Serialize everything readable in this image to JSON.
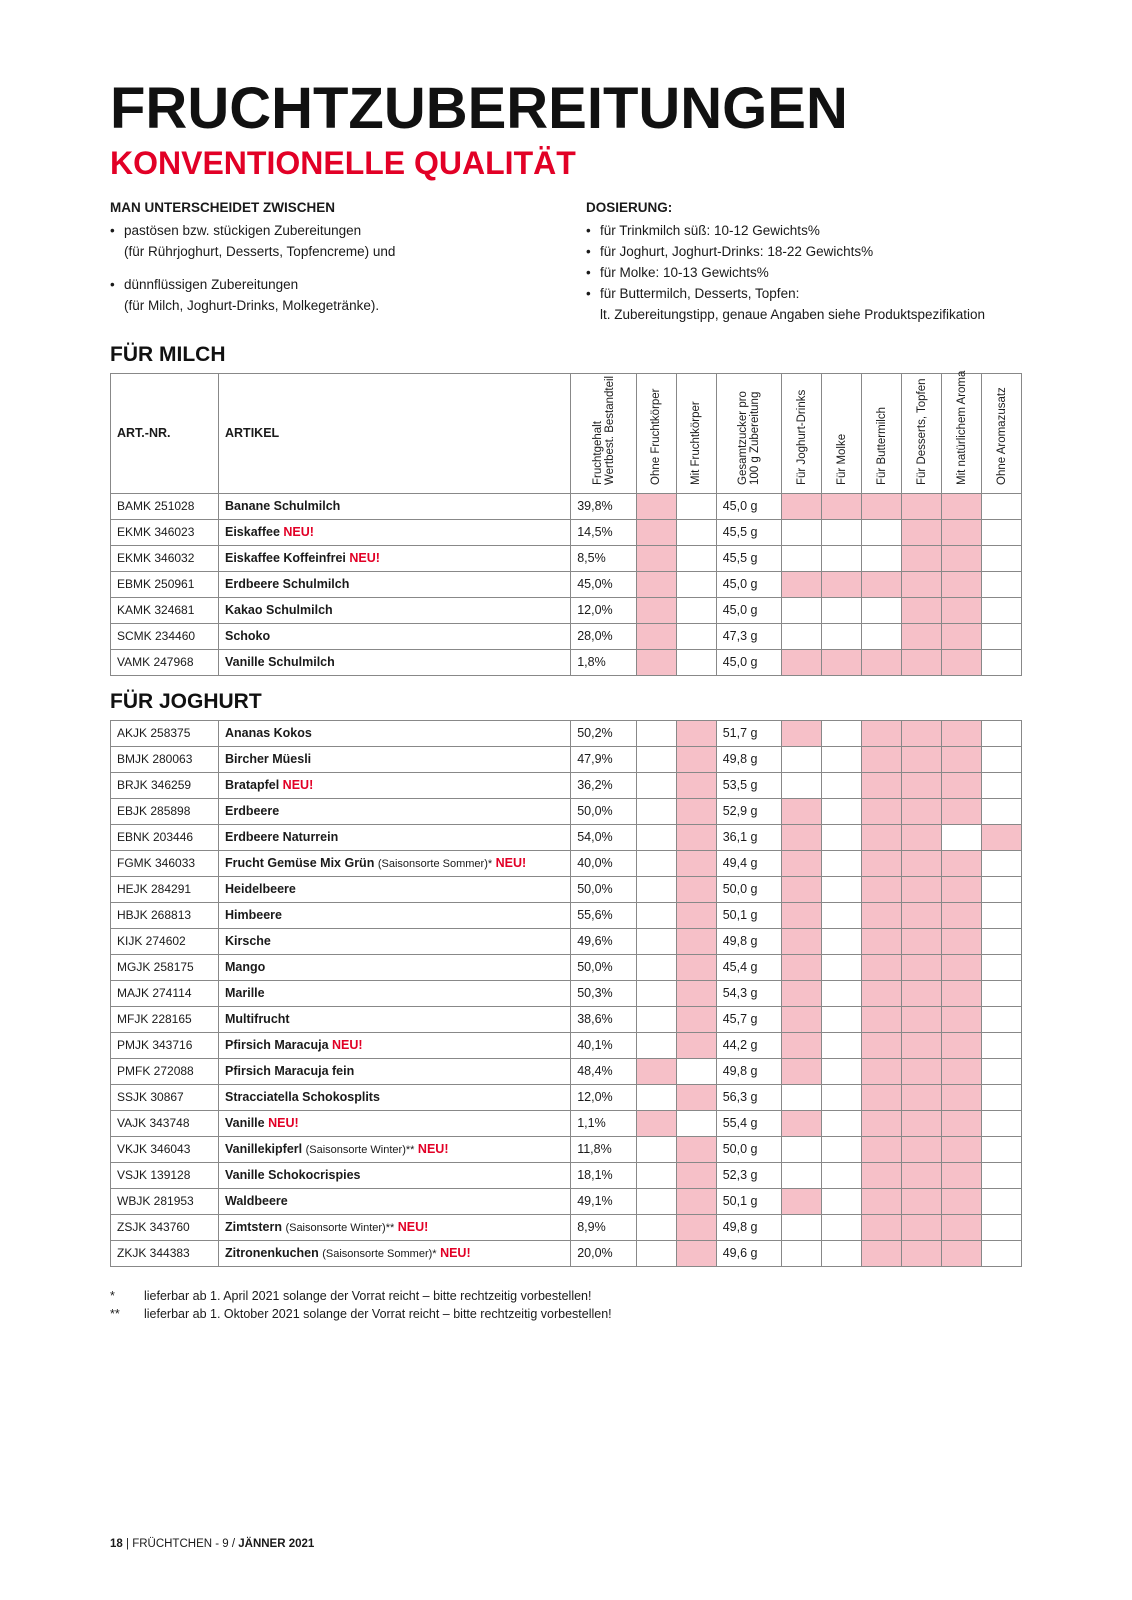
{
  "title": "FRUCHTZUBEREITUNGEN",
  "subtitle": "KONVENTIONELLE QUALITÄT",
  "intro": {
    "left_heading": "MAN UNTERSCHEIDET ZWISCHEN",
    "left_items": [
      "pastösen bzw. stückigen Zubereitungen",
      "(für Rührjoghurt, Desserts, Topfencreme) und",
      "",
      "dünnflüssigen Zubereitungen",
      "(für Milch, Joghurt-Drinks, Molkegetränke)."
    ],
    "right_heading": "DOSIERUNG:",
    "right_items": [
      "für Trinkmilch süß: 10-12 Gewichts%",
      "für Joghurt, Joghurt-Drinks: 18-22 Gewichts%",
      "für Molke: 10-13 Gewichts%",
      "für Buttermilch, Desserts, Topfen:"
    ],
    "right_note": "lt. Zubereitungstipp, genaue Angaben siehe Produkt­spezifikation"
  },
  "columns": {
    "art": "ART.-NR.",
    "artikel": "ARTIKEL",
    "c1": "Fruchtgehalt\nWertbest. Bestandteil",
    "c2": "Ohne Fruchtkörper",
    "c3": "Mit Fruchtkörper",
    "c4": "Gesamtzucker pro\n100 g Zubereitung",
    "c5": "Für Joghurt-Drinks",
    "c6": "Für Molke",
    "c7": "Für Buttermilch",
    "c8": "Für Desserts, Topfen",
    "c9": "Mit natürlichem Aroma",
    "c10": "Ohne Aromazusatz"
  },
  "section1": {
    "heading": "FÜR MILCH",
    "rows": [
      {
        "art": "BAMK 251028",
        "name": "Banane Schulmilch",
        "neu": false,
        "sub": "",
        "pct": "39,8%",
        "sugar": "45,0 g",
        "marks": [
          false,
          true,
          false,
          false,
          true,
          true,
          true,
          true,
          true,
          false
        ]
      },
      {
        "art": "EKMK 346023",
        "name": "Eiskaffee",
        "neu": true,
        "sub": "",
        "pct": "14,5%",
        "sugar": "45,5 g",
        "marks": [
          false,
          true,
          false,
          false,
          false,
          false,
          false,
          true,
          true,
          false
        ]
      },
      {
        "art": "EKMK 346032",
        "name": "Eiskaffee Koffeinfrei",
        "neu": true,
        "sub": "",
        "pct": "8,5%",
        "sugar": "45,5 g",
        "marks": [
          false,
          true,
          false,
          false,
          false,
          false,
          false,
          true,
          true,
          false
        ]
      },
      {
        "art": "EBMK 250961",
        "name": "Erdbeere Schulmilch",
        "neu": false,
        "sub": "",
        "pct": "45,0%",
        "sugar": "45,0 g",
        "marks": [
          false,
          true,
          false,
          false,
          true,
          true,
          true,
          true,
          true,
          false
        ]
      },
      {
        "art": "KAMK 324681",
        "name": "Kakao Schulmilch",
        "neu": false,
        "sub": "",
        "pct": "12,0%",
        "sugar": "45,0 g",
        "marks": [
          false,
          true,
          false,
          false,
          false,
          false,
          false,
          true,
          true,
          false
        ]
      },
      {
        "art": "SCMK 234460",
        "name": "Schoko",
        "neu": false,
        "sub": "",
        "pct": "28,0%",
        "sugar": "47,3 g",
        "marks": [
          false,
          true,
          false,
          false,
          false,
          false,
          false,
          true,
          true,
          false
        ]
      },
      {
        "art": "VAMK 247968",
        "name": "Vanille Schulmilch",
        "neu": false,
        "sub": "",
        "pct": "1,8%",
        "sugar": "45,0 g",
        "marks": [
          false,
          true,
          false,
          false,
          true,
          true,
          true,
          true,
          true,
          false
        ]
      }
    ]
  },
  "section2": {
    "heading": "FÜR JOGHURT",
    "rows": [
      {
        "art": "AKJK 258375",
        "name": "Ananas Kokos",
        "neu": false,
        "sub": "",
        "pct": "50,2%",
        "sugar": "51,7 g",
        "marks": [
          false,
          false,
          true,
          false,
          true,
          false,
          true,
          true,
          true,
          false
        ]
      },
      {
        "art": "BMJK 280063",
        "name": "Bircher Müesli",
        "neu": false,
        "sub": "",
        "pct": "47,9%",
        "sugar": "49,8 g",
        "marks": [
          false,
          false,
          true,
          false,
          false,
          false,
          true,
          true,
          true,
          false
        ]
      },
      {
        "art": "BRJK 346259",
        "name": "Bratapfel",
        "neu": true,
        "sub": "",
        "pct": "36,2%",
        "sugar": "53,5 g",
        "marks": [
          false,
          false,
          true,
          false,
          false,
          false,
          true,
          true,
          true,
          false
        ]
      },
      {
        "art": "EBJK 285898",
        "name": "Erdbeere",
        "neu": false,
        "sub": "",
        "pct": "50,0%",
        "sugar": "52,9 g",
        "marks": [
          false,
          false,
          true,
          false,
          true,
          false,
          true,
          true,
          true,
          false
        ]
      },
      {
        "art": "EBNK 203446",
        "name": "Erdbeere Naturrein",
        "neu": false,
        "sub": "",
        "pct": "54,0%",
        "sugar": "36,1 g",
        "marks": [
          false,
          false,
          true,
          false,
          true,
          false,
          true,
          true,
          false,
          true
        ]
      },
      {
        "art": "FGMK 346033",
        "name": "Frucht Gemüse Mix Grün",
        "neu": true,
        "sub": "(Saisonsorte Sommer)*",
        "pct": "40,0%",
        "sugar": "49,4 g",
        "marks": [
          false,
          false,
          true,
          false,
          true,
          false,
          true,
          true,
          true,
          false
        ]
      },
      {
        "art": "HEJK 284291",
        "name": "Heidelbeere",
        "neu": false,
        "sub": "",
        "pct": "50,0%",
        "sugar": "50,0 g",
        "marks": [
          false,
          false,
          true,
          false,
          true,
          false,
          true,
          true,
          true,
          false
        ]
      },
      {
        "art": "HBJK 268813",
        "name": "Himbeere",
        "neu": false,
        "sub": "",
        "pct": "55,6%",
        "sugar": "50,1 g",
        "marks": [
          false,
          false,
          true,
          false,
          true,
          false,
          true,
          true,
          true,
          false
        ]
      },
      {
        "art": "KIJK 274602",
        "name": "Kirsche",
        "neu": false,
        "sub": "",
        "pct": "49,6%",
        "sugar": "49,8 g",
        "marks": [
          false,
          false,
          true,
          false,
          true,
          false,
          true,
          true,
          true,
          false
        ]
      },
      {
        "art": "MGJK 258175",
        "name": "Mango",
        "neu": false,
        "sub": "",
        "pct": "50,0%",
        "sugar": "45,4 g",
        "marks": [
          false,
          false,
          true,
          false,
          true,
          false,
          true,
          true,
          true,
          false
        ]
      },
      {
        "art": "MAJK 274114",
        "name": "Marille",
        "neu": false,
        "sub": "",
        "pct": "50,3%",
        "sugar": "54,3 g",
        "marks": [
          false,
          false,
          true,
          false,
          true,
          false,
          true,
          true,
          true,
          false
        ]
      },
      {
        "art": "MFJK 228165",
        "name": "Multifrucht",
        "neu": false,
        "sub": "",
        "pct": "38,6%",
        "sugar": "45,7 g",
        "marks": [
          false,
          false,
          true,
          false,
          true,
          false,
          true,
          true,
          true,
          false
        ]
      },
      {
        "art": "PMJK 343716",
        "name": "Pfirsich Maracuja",
        "neu": true,
        "sub": "",
        "pct": "40,1%",
        "sugar": "44,2 g",
        "marks": [
          false,
          false,
          true,
          false,
          true,
          false,
          true,
          true,
          true,
          false
        ]
      },
      {
        "art": "PMFK 272088",
        "name": "Pfirsich Maracuja fein",
        "neu": false,
        "sub": "",
        "pct": "48,4%",
        "sugar": "49,8 g",
        "marks": [
          false,
          true,
          false,
          false,
          true,
          false,
          true,
          true,
          true,
          false
        ]
      },
      {
        "art": "SSJK 30867",
        "name": "Stracciatella Schokosplits",
        "neu": false,
        "sub": "",
        "pct": "12,0%",
        "sugar": "56,3 g",
        "marks": [
          false,
          false,
          true,
          false,
          false,
          false,
          true,
          true,
          true,
          false
        ]
      },
      {
        "art": "VAJK 343748",
        "name": "Vanille",
        "neu": true,
        "sub": "",
        "pct": "1,1%",
        "sugar": "55,4 g",
        "marks": [
          false,
          true,
          false,
          false,
          true,
          false,
          true,
          true,
          true,
          false
        ]
      },
      {
        "art": "VKJK 346043",
        "name": "Vanillekipferl",
        "neu": true,
        "sub": "(Saisonsorte Winter)**",
        "pct": "11,8%",
        "sugar": "50,0 g",
        "marks": [
          false,
          false,
          true,
          false,
          false,
          false,
          true,
          true,
          true,
          false
        ]
      },
      {
        "art": "VSJK 139128",
        "name": "Vanille Schokocrispies",
        "neu": false,
        "sub": "",
        "pct": "18,1%",
        "sugar": "52,3 g",
        "marks": [
          false,
          false,
          true,
          false,
          false,
          false,
          true,
          true,
          true,
          false
        ]
      },
      {
        "art": "WBJK 281953",
        "name": "Waldbeere",
        "neu": false,
        "sub": "",
        "pct": "49,1%",
        "sugar": "50,1 g",
        "marks": [
          false,
          false,
          true,
          false,
          true,
          false,
          true,
          true,
          true,
          false
        ]
      },
      {
        "art": "ZSJK 343760",
        "name": "Zimtstern",
        "neu": true,
        "sub": "(Saisonsorte Winter)**",
        "pct": "8,9%",
        "sugar": "49,8 g",
        "marks": [
          false,
          false,
          true,
          false,
          false,
          false,
          true,
          true,
          true,
          false
        ]
      },
      {
        "art": "ZKJK 344383",
        "name": "Zitronenkuchen",
        "neu": true,
        "sub": "(Saisonsorte Sommer)*",
        "pct": "20,0%",
        "sugar": "49,6 g",
        "marks": [
          false,
          false,
          true,
          false,
          false,
          false,
          true,
          true,
          true,
          false
        ]
      }
    ]
  },
  "footnotes": [
    {
      "sym": "*",
      "text": "lieferbar ab 1. April 2021 solange der Vorrat reicht – bitte rechtzeitig vorbestellen!"
    },
    {
      "sym": "**",
      "text": "lieferbar ab 1. Oktober 2021 solange der Vorrat reicht – bitte rechtzeitig vorbestellen!"
    }
  ],
  "footer": {
    "page": "18",
    "sep": " | ",
    "text1": "FRÜCHTCHEN - 9 / ",
    "text2": "JÄNNER 2021"
  },
  "colors": {
    "accent_red": "#e20026",
    "pink_cell": "#f6c0c8",
    "border": "#888888",
    "text": "#1a1a1a",
    "bg": "#ffffff"
  },
  "neu_label": "NEU!"
}
